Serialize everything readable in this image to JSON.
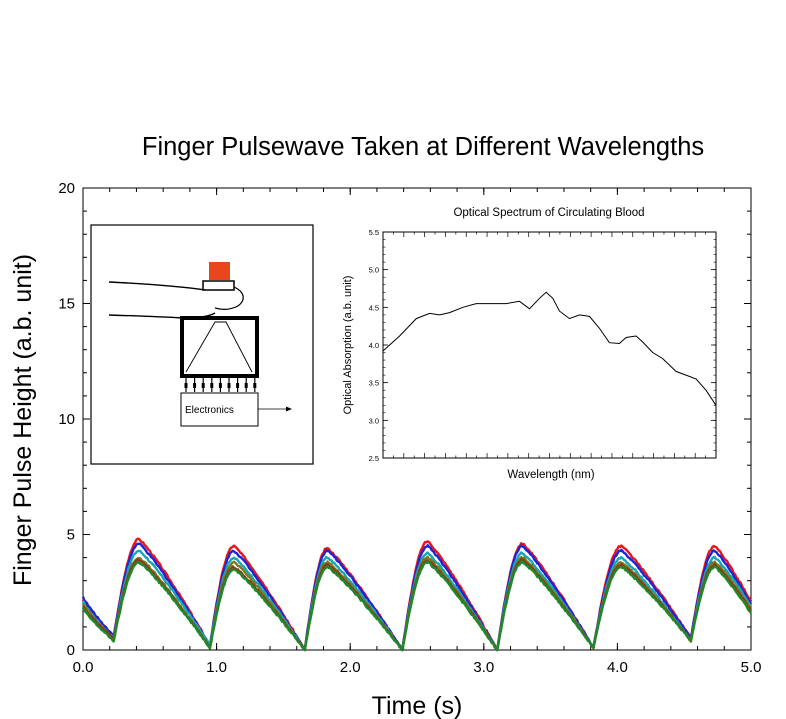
{
  "chart_data": [
    {
      "type": "line",
      "title": "Finger Pulsewave Taken at Different Wavelengths",
      "xlabel": "Time (s)",
      "ylabel": "Finger Pulse Height (a.b. unit)",
      "xlim": [
        0.0,
        5.0
      ],
      "ylim": [
        0,
        20
      ],
      "x_ticks": [
        "0.0",
        "1.0",
        "2.0",
        "3.0",
        "4.0",
        "5.0"
      ],
      "y_ticks": [
        "0",
        "5",
        "10",
        "15",
        "20"
      ],
      "grid": false,
      "legend": "none",
      "peak_times": [
        0.42,
        1.13,
        1.83,
        2.58,
        3.29,
        4.03,
        4.73
      ],
      "trough_times": [
        0.23,
        0.95,
        1.66,
        2.39,
        3.1,
        3.82,
        4.55
      ],
      "series": [
        {
          "color": "#e8141a",
          "start": 2.2,
          "peaks": [
            4.8,
            4.5,
            4.4,
            4.7,
            4.6,
            4.5,
            4.5
          ],
          "troughs": [
            0.6,
            0.2,
            0.0,
            0.0,
            0.0,
            0.1,
            0.5
          ],
          "end": 2.1
        },
        {
          "color": "#1f24d6",
          "start": 2.3,
          "peaks": [
            4.6,
            4.3,
            4.3,
            4.5,
            4.5,
            4.3,
            4.3
          ],
          "troughs": [
            0.6,
            0.2,
            0.0,
            0.0,
            0.0,
            0.1,
            0.5
          ],
          "end": 2.0
        },
        {
          "color": "#16a6b8",
          "start": 2.1,
          "peaks": [
            4.3,
            4.0,
            4.0,
            4.2,
            4.2,
            4.0,
            4.0
          ],
          "troughs": [
            0.5,
            0.2,
            0.0,
            0.0,
            0.0,
            0.1,
            0.4
          ],
          "end": 1.9
        },
        {
          "color": "#7a7a1a",
          "start": 2.0,
          "peaks": [
            4.0,
            3.8,
            3.8,
            4.0,
            4.0,
            3.8,
            3.8
          ],
          "troughs": [
            0.5,
            0.1,
            0.0,
            0.0,
            0.0,
            0.1,
            0.4
          ],
          "end": 1.8
        },
        {
          "color": "#8b3a1e",
          "start": 1.9,
          "peaks": [
            3.9,
            3.6,
            3.7,
            3.9,
            3.9,
            3.7,
            3.7
          ],
          "troughs": [
            0.5,
            0.1,
            0.0,
            0.0,
            0.0,
            0.1,
            0.4
          ],
          "end": 1.7
        },
        {
          "color": "#1d8a2a",
          "start": 1.8,
          "peaks": [
            3.8,
            3.5,
            3.6,
            3.8,
            3.8,
            3.6,
            3.6
          ],
          "troughs": [
            0.4,
            0.1,
            0.0,
            0.0,
            0.0,
            0.1,
            0.4
          ],
          "end": 1.6
        }
      ]
    },
    {
      "type": "line",
      "title": "Optical Spectrum of Circulating Blood",
      "xlabel": "Wavelength (nm)",
      "ylabel": "Optical Absorption (a.b. unit)",
      "ylim": [
        2.5,
        5.5
      ],
      "y_ticks": [
        "2.5",
        "3.0",
        "3.5",
        "4.0",
        "4.5",
        "5.0",
        "5.5"
      ],
      "xlim": [
        0,
        1
      ],
      "x_tick_count": 16,
      "series": [
        {
          "color": "#000000",
          "x": [
            0.0,
            0.05,
            0.1,
            0.14,
            0.17,
            0.2,
            0.24,
            0.28,
            0.33,
            0.37,
            0.41,
            0.44,
            0.47,
            0.49,
            0.51,
            0.53,
            0.56,
            0.59,
            0.62,
            0.65,
            0.68,
            0.71,
            0.73,
            0.76,
            0.78,
            0.81,
            0.84,
            0.88,
            0.91,
            0.94,
            0.97,
            1.0
          ],
          "y": [
            3.92,
            4.12,
            4.35,
            4.42,
            4.4,
            4.43,
            4.5,
            4.55,
            4.55,
            4.55,
            4.58,
            4.48,
            4.62,
            4.7,
            4.62,
            4.45,
            4.35,
            4.4,
            4.38,
            4.22,
            4.03,
            4.02,
            4.1,
            4.12,
            4.04,
            3.9,
            3.82,
            3.65,
            3.6,
            3.55,
            3.4,
            3.2
          ]
        }
      ]
    }
  ],
  "inset_diagram": {
    "electronics_label": "Electronics",
    "colors": {
      "source": "#e8461c",
      "outline": "#000000"
    }
  }
}
